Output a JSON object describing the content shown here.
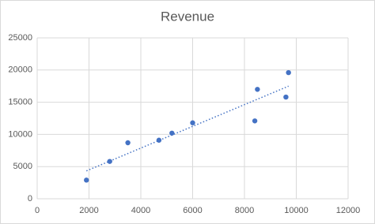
{
  "chart_data": {
    "type": "scatter",
    "title": "Revenue",
    "x": [
      1900,
      2800,
      3500,
      4700,
      5200,
      6000,
      8400,
      8500,
      9600,
      9700
    ],
    "values": [
      2900,
      5800,
      8700,
      9100,
      10200,
      11800,
      12100,
      17000,
      15800,
      19600
    ],
    "color": "#4472c4",
    "xlim": [
      0,
      12000
    ],
    "xticks": [
      0,
      2000,
      4000,
      6000,
      8000,
      10000,
      12000
    ],
    "ylim": [
      0,
      25000
    ],
    "yticks": [
      0,
      5000,
      10000,
      15000,
      20000,
      25000
    ],
    "grid": true,
    "trendline": true
  }
}
